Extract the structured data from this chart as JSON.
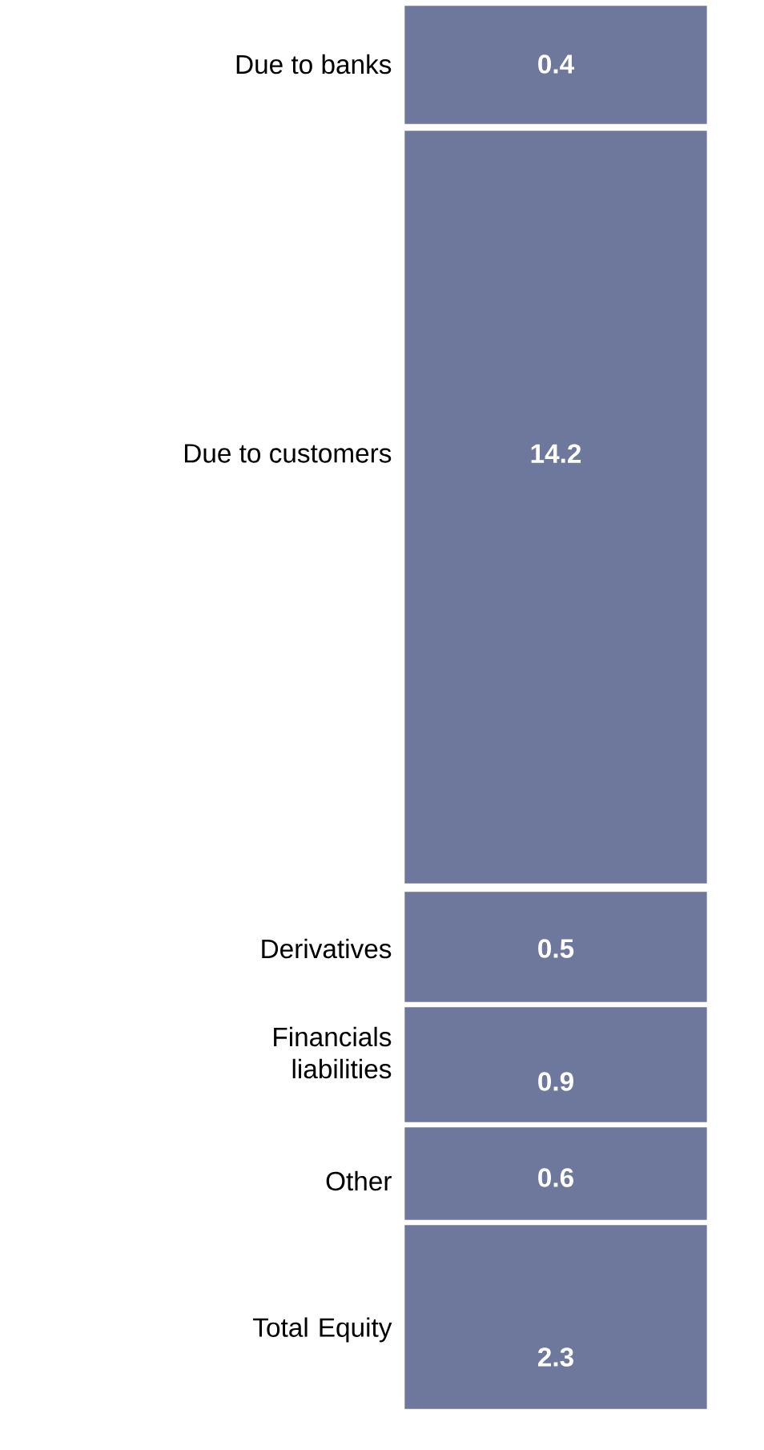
{
  "chart_data": {
    "type": "other",
    "categories": [
      "Due to banks",
      "Due to customers",
      "Derivatives",
      "Financials liabilities",
      "Other",
      "Total Equity"
    ],
    "values": [
      0.4,
      14.2,
      0.5,
      0.9,
      0.6,
      2.3
    ],
    "color": "#6e789c",
    "data_labels": true
  }
}
